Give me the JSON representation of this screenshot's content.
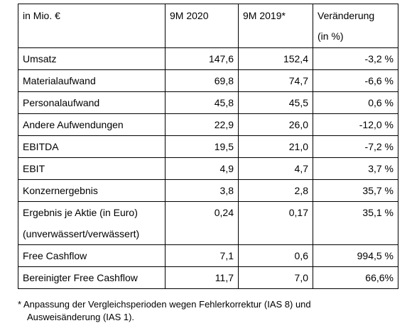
{
  "table": {
    "header": [
      "in Mio. €",
      "9M 2020",
      "9M 2019*",
      [
        "Veränderung",
        "(in %)"
      ]
    ],
    "rows": [
      [
        "Umsatz",
        "147,6",
        "152,4",
        "-3,2 %"
      ],
      [
        "Materialaufwand",
        "69,8",
        "74,7",
        "-6,6 %"
      ],
      [
        "Personalaufwand",
        "45,8",
        "45,5",
        "0,6 %"
      ],
      [
        "Andere Aufwendungen",
        "22,9",
        "26,0",
        "-12,0 %"
      ],
      [
        "EBITDA",
        "19,5",
        "21,0",
        "-7,2 %"
      ],
      [
        "EBIT",
        "4,9",
        "4,7",
        "3,7 %"
      ],
      [
        "Konzernergebnis",
        "3,8",
        "2,8",
        "35,7 %"
      ],
      [
        [
          "Ergebnis je Aktie (in Euro)",
          "(unverwässert/verwässert)"
        ],
        "0,24",
        "0,17",
        "35,1 %"
      ],
      [
        "Free Cashflow",
        "7,1",
        "0,6",
        "994,5 %"
      ],
      [
        "Bereinigter Free Cashflow",
        "11,7",
        "7,0",
        "66,6%"
      ]
    ]
  },
  "footnote": [
    "* Anpassung der Vergleichsperioden wegen Fehlerkorrektur (IAS 8) und",
    "Ausweisänderung (IAS 1)."
  ]
}
